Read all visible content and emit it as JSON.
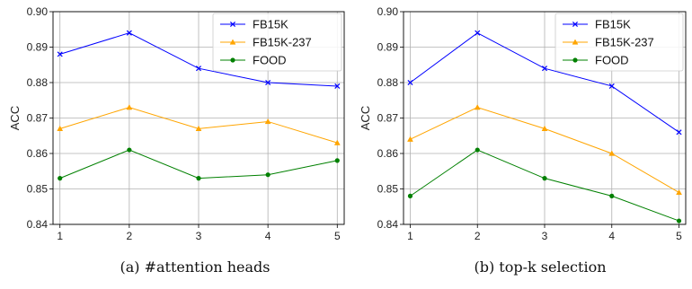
{
  "chart_data": [
    {
      "type": "line",
      "caption": "(a)  #attention heads",
      "ylabel": "ACC",
      "x": [
        1,
        2,
        3,
        4,
        5
      ],
      "xlim": [
        0.9,
        5.1
      ],
      "ylim": [
        0.84,
        0.9
      ],
      "yticks": [
        0.84,
        0.85,
        0.86,
        0.87,
        0.88,
        0.89,
        0.9
      ],
      "ytick_labels": [
        "0.84",
        "0.85",
        "0.86",
        "0.87",
        "0.88",
        "0.89",
        "0.90"
      ],
      "xtick_labels": [
        "1",
        "2",
        "3",
        "4",
        "5"
      ],
      "grid": true,
      "legend_position": "top-right",
      "series": [
        {
          "name": "FB15K",
          "values": [
            0.888,
            0.894,
            0.884,
            0.88,
            0.879
          ],
          "color": "#0000ff",
          "marker": "x"
        },
        {
          "name": "FB15K-237",
          "values": [
            0.867,
            0.873,
            0.867,
            0.869,
            0.863
          ],
          "color": "#ffa500",
          "marker": "triangle"
        },
        {
          "name": "FOOD",
          "values": [
            0.853,
            0.861,
            0.853,
            0.854,
            0.858
          ],
          "color": "#008000",
          "marker": "circle"
        }
      ]
    },
    {
      "type": "line",
      "caption": "(b)  top-k selection",
      "ylabel": "ACC",
      "x": [
        1,
        2,
        3,
        4,
        5
      ],
      "xlim": [
        0.9,
        5.1
      ],
      "ylim": [
        0.84,
        0.9
      ],
      "yticks": [
        0.84,
        0.85,
        0.86,
        0.87,
        0.88,
        0.89,
        0.9
      ],
      "ytick_labels": [
        "0.84",
        "0.85",
        "0.86",
        "0.87",
        "0.88",
        "0.89",
        "0.90"
      ],
      "xtick_labels": [
        "1",
        "2",
        "3",
        "4",
        "5"
      ],
      "grid": true,
      "legend_position": "top-right",
      "series": [
        {
          "name": "FB15K",
          "values": [
            0.88,
            0.894,
            0.884,
            0.879,
            0.866
          ],
          "color": "#0000ff",
          "marker": "x"
        },
        {
          "name": "FB15K-237",
          "values": [
            0.864,
            0.873,
            0.867,
            0.86,
            0.849
          ],
          "color": "#ffa500",
          "marker": "triangle"
        },
        {
          "name": "FOOD",
          "values": [
            0.848,
            0.861,
            0.853,
            0.848,
            0.841
          ],
          "color": "#008000",
          "marker": "circle"
        }
      ]
    }
  ]
}
